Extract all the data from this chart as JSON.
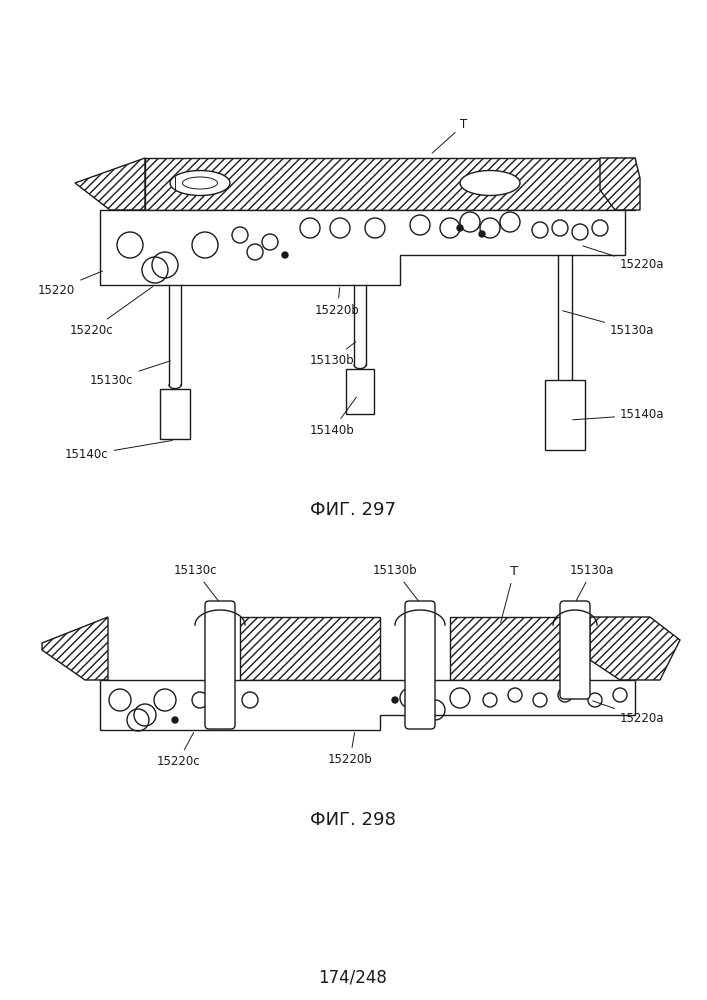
{
  "title_top": "174/248",
  "fig1_label": "ФИГ. 297",
  "fig2_label": "ФИГ. 298",
  "bg_color": "#ffffff",
  "line_color": "#1a1a1a",
  "lw": 1.0,
  "label_fs": 8.5,
  "title_fs": 12,
  "figlabel_fs": 13
}
